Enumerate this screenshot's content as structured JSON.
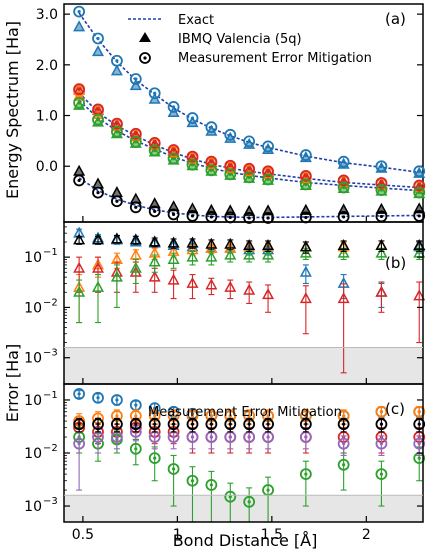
{
  "figure": {
    "xlabel": "Bond Distance [Å]",
    "ylabel_top": "Energy Spectrum [Ha]",
    "ylabel_bottom": "Error [Ha]",
    "colors": {
      "level0": "#1f77b4",
      "level1": "#ff7f0e",
      "level2": "#d62728",
      "level3": "#2ca02c",
      "level4": "#9467bd",
      "exact": "#1f3fa8",
      "black": "#000000",
      "threshold_band": "#e6e6e6"
    }
  },
  "chart_data": [
    {
      "type": "line",
      "panel_label": "(a)",
      "title": "",
      "xlabel": "",
      "ylabel": "Energy Spectrum [Ha]",
      "xlim": [
        0.4,
        2.3
      ],
      "ylim": [
        -1.1,
        3.2
      ],
      "x_ticks": [
        0.5,
        1,
        1.5,
        2
      ],
      "y_ticks": [
        "3.0",
        "2.0",
        "1.0",
        "0.0"
      ],
      "y_tick_values": [
        3.0,
        2.0,
        1.0,
        0.0
      ],
      "legend": {
        "position": "top-right",
        "entries": [
          "Exact",
          "IBMQ Valencia (5q)",
          "Measurement Error Mitigation"
        ]
      },
      "x": [
        0.48,
        0.58,
        0.68,
        0.78,
        0.88,
        0.98,
        1.08,
        1.18,
        1.28,
        1.38,
        1.48,
        1.68,
        1.88,
        2.08,
        2.28
      ],
      "exact": [
        {
          "name": "level0",
          "values": [
            3.02,
            2.5,
            2.06,
            1.7,
            1.42,
            1.15,
            0.93,
            0.75,
            0.6,
            0.47,
            0.37,
            0.2,
            0.07,
            -0.02,
            -0.12
          ]
        },
        {
          "name": "level1",
          "values": [
            1.45,
            1.06,
            0.8,
            0.6,
            0.42,
            0.27,
            0.14,
            0.04,
            -0.04,
            -0.1,
            -0.15,
            -0.24,
            -0.32,
            -0.37,
            -0.42
          ]
        },
        {
          "name": "level2",
          "values": [
            1.3,
            0.95,
            0.7,
            0.5,
            0.34,
            0.18,
            0.06,
            -0.04,
            -0.12,
            -0.18,
            -0.23,
            -0.32,
            -0.38,
            -0.43,
            -0.48
          ]
        },
        {
          "name": "level3",
          "values": [
            -0.23,
            -0.48,
            -0.65,
            -0.77,
            -0.86,
            -0.92,
            -0.96,
            -0.99,
            -1.0,
            -1.01,
            -1.01,
            -1.0,
            -0.99,
            -0.98,
            -0.97
          ]
        }
      ],
      "ibmq": [
        {
          "name": "level0",
          "values": [
            2.75,
            2.26,
            1.88,
            1.59,
            1.32,
            1.06,
            0.86,
            0.69,
            0.55,
            0.43,
            0.33,
            0.17,
            0.04,
            -0.04,
            -0.14
          ]
        },
        {
          "name": "level1",
          "values": [
            1.38,
            1.02,
            0.78,
            0.58,
            0.4,
            0.25,
            0.12,
            0.02,
            -0.06,
            -0.12,
            -0.17,
            -0.26,
            -0.34,
            -0.39,
            -0.44
          ]
        },
        {
          "name": "level2",
          "values": [
            1.5,
            1.1,
            0.82,
            0.62,
            0.44,
            0.3,
            0.17,
            0.07,
            -0.01,
            -0.07,
            -0.12,
            -0.21,
            -0.3,
            -0.35,
            -0.4
          ]
        },
        {
          "name": "level3",
          "values": [
            1.2,
            0.87,
            0.64,
            0.45,
            0.28,
            0.12,
            0.01,
            -0.1,
            -0.18,
            -0.24,
            -0.28,
            -0.38,
            -0.44,
            -0.49,
            -0.54
          ]
        },
        {
          "name": "black",
          "values": [
            -0.1,
            -0.35,
            -0.52,
            -0.65,
            -0.74,
            -0.8,
            -0.84,
            -0.87,
            -0.88,
            -0.89,
            -0.88,
            -0.87,
            -0.86,
            -0.85,
            -0.84
          ]
        }
      ],
      "mitigated": [
        {
          "name": "level0",
          "values": [
            3.05,
            2.52,
            2.08,
            1.72,
            1.44,
            1.17,
            0.95,
            0.77,
            0.62,
            0.49,
            0.39,
            0.22,
            0.09,
            0.0,
            -0.1
          ]
        },
        {
          "name": "level1",
          "values": [
            1.48,
            1.09,
            0.82,
            0.62,
            0.44,
            0.29,
            0.16,
            0.06,
            -0.02,
            -0.08,
            -0.13,
            -0.22,
            -0.3,
            -0.35,
            -0.4
          ]
        },
        {
          "name": "level2",
          "values": [
            1.52,
            1.12,
            0.84,
            0.64,
            0.46,
            0.32,
            0.19,
            0.09,
            0.01,
            -0.05,
            -0.1,
            -0.19,
            -0.28,
            -0.33,
            -0.38
          ]
        },
        {
          "name": "level3",
          "values": [
            1.25,
            0.92,
            0.68,
            0.48,
            0.31,
            0.15,
            0.03,
            -0.08,
            -0.16,
            -0.22,
            -0.26,
            -0.36,
            -0.42,
            -0.47,
            -0.52
          ]
        },
        {
          "name": "black",
          "values": [
            -0.28,
            -0.52,
            -0.69,
            -0.81,
            -0.89,
            -0.95,
            -0.98,
            -1.0,
            -1.01,
            -1.02,
            -1.02,
            -1.01,
            -1.0,
            -0.99,
            -0.98
          ]
        }
      ]
    },
    {
      "type": "scatter",
      "panel_label": "(b)",
      "title": "",
      "xlabel": "",
      "ylabel": "",
      "scale_y": "log",
      "xlim": [
        0.4,
        2.3
      ],
      "ylim": [
        0.0003,
        0.5
      ],
      "threshold": 0.0016,
      "y_ticks": [
        0.1,
        0.01,
        0.001
      ],
      "y_tick_labels": [
        {
          "base": "10",
          "exp": "−1"
        },
        {
          "base": "10",
          "exp": "−2"
        },
        {
          "base": "10",
          "exp": "−3"
        }
      ],
      "marker": "triangle",
      "x": [
        0.48,
        0.58,
        0.68,
        0.78,
        0.88,
        0.98,
        1.08,
        1.18,
        1.28,
        1.38,
        1.48,
        1.68,
        1.88,
        2.08,
        2.28
      ],
      "series": [
        {
          "name": "level0",
          "values": [
            0.3,
            0.24,
            0.22,
            0.2,
            0.19,
            0.17,
            0.16,
            0.15,
            0.15,
            0.14,
            0.14,
            0.05,
            0.03,
            0.02,
            0.16
          ],
          "err": [
            0.06,
            0.04,
            0.04,
            0.03,
            0.03,
            0.03,
            0.03,
            0.03,
            0.03,
            0.03,
            0.03,
            0.02,
            0.015,
            0.01,
            0.04
          ]
        },
        {
          "name": "level1",
          "values": [
            0.025,
            0.07,
            0.09,
            0.11,
            0.12,
            0.13,
            0.14,
            0.15,
            0.15,
            0.16,
            0.16,
            0.16,
            0.16,
            0.17,
            0.17
          ],
          "err": [
            0.02,
            0.03,
            0.03,
            0.03,
            0.03,
            0.03,
            0.03,
            0.03,
            0.03,
            0.03,
            0.03,
            0.04,
            0.04,
            0.04,
            0.04
          ]
        },
        {
          "name": "level2",
          "values": [
            0.06,
            0.06,
            0.05,
            0.05,
            0.04,
            0.035,
            0.03,
            0.028,
            0.025,
            0.022,
            0.018,
            0.015,
            0.015,
            0.02,
            0.017
          ],
          "err": [
            0.04,
            0.04,
            0.03,
            0.03,
            0.02,
            0.02,
            0.015,
            0.01,
            0.01,
            0.01,
            0.01,
            0.012,
            0.0145,
            0.012,
            0.015
          ]
        },
        {
          "name": "level3",
          "values": [
            0.02,
            0.025,
            0.04,
            0.06,
            0.08,
            0.09,
            0.1,
            0.1,
            0.11,
            0.11,
            0.11,
            0.12,
            0.12,
            0.12,
            0.12
          ],
          "err": [
            0.015,
            0.02,
            0.03,
            0.03,
            0.03,
            0.03,
            0.03,
            0.03,
            0.03,
            0.03,
            0.03,
            0.03,
            0.03,
            0.03,
            0.03
          ]
        },
        {
          "name": "black",
          "values": [
            0.22,
            0.22,
            0.23,
            0.22,
            0.2,
            0.19,
            0.19,
            0.18,
            0.18,
            0.17,
            0.17,
            0.16,
            0.17,
            0.17,
            0.17
          ],
          "err": [
            0.04,
            0.04,
            0.04,
            0.04,
            0.04,
            0.04,
            0.04,
            0.04,
            0.04,
            0.04,
            0.04,
            0.04,
            0.04,
            0.04,
            0.04
          ]
        }
      ]
    },
    {
      "type": "scatter",
      "panel_label": "(c)",
      "title": "",
      "annotation": "Measurement Error Mitigation",
      "xlabel": "Bond Distance [Å]",
      "ylabel": "",
      "scale_y": "log",
      "xlim": [
        0.4,
        2.3
      ],
      "ylim": [
        0.0005,
        0.2
      ],
      "threshold": 0.0016,
      "x_ticks": [
        0.5,
        1,
        1.5,
        2
      ],
      "y_ticks": [
        0.1,
        0.01,
        0.001
      ],
      "y_tick_labels": [
        {
          "base": "10",
          "exp": "−1"
        },
        {
          "base": "10",
          "exp": "−2"
        },
        {
          "base": "10",
          "exp": "−3"
        }
      ],
      "marker": "circle",
      "x": [
        0.48,
        0.58,
        0.68,
        0.78,
        0.88,
        0.98,
        1.08,
        1.18,
        1.28,
        1.38,
        1.48,
        1.68,
        1.88,
        2.08,
        2.28
      ],
      "series": [
        {
          "name": "level0",
          "values": [
            0.13,
            0.11,
            0.1,
            0.08,
            0.07,
            0.06,
            0.055,
            0.05,
            0.05,
            0.05,
            0.05,
            0.05,
            0.05,
            0.06,
            0.06
          ],
          "err": [
            0.02,
            0.02,
            0.02,
            0.015,
            0.015,
            0.012,
            0.012,
            0.01,
            0.01,
            0.01,
            0.01,
            0.01,
            0.01,
            0.012,
            0.012
          ]
        },
        {
          "name": "level1",
          "values": [
            0.04,
            0.045,
            0.05,
            0.05,
            0.05,
            0.05,
            0.05,
            0.05,
            0.05,
            0.05,
            0.05,
            0.05,
            0.05,
            0.06,
            0.06
          ],
          "err": [
            0.015,
            0.015,
            0.015,
            0.015,
            0.015,
            0.015,
            0.015,
            0.015,
            0.015,
            0.015,
            0.015,
            0.015,
            0.015,
            0.015,
            0.015
          ]
        },
        {
          "name": "level2",
          "values": [
            0.03,
            0.025,
            0.025,
            0.03,
            0.025,
            0.025,
            0.02,
            0.02,
            0.02,
            0.02,
            0.02,
            0.02,
            0.02,
            0.02,
            0.02
          ],
          "err": [
            0.012,
            0.01,
            0.01,
            0.012,
            0.01,
            0.01,
            0.01,
            0.01,
            0.01,
            0.01,
            0.01,
            0.01,
            0.01,
            0.01,
            0.01
          ]
        },
        {
          "name": "level3",
          "values": [
            0.02,
            0.015,
            0.018,
            0.012,
            0.008,
            0.005,
            0.003,
            0.0025,
            0.0015,
            0.0012,
            0.002,
            0.004,
            0.006,
            0.004,
            0.008
          ],
          "err": [
            0.01,
            0.008,
            0.008,
            0.006,
            0.005,
            0.004,
            0.0025,
            0.002,
            0.0012,
            0.001,
            0.0015,
            0.003,
            0.004,
            0.003,
            0.005
          ]
        },
        {
          "name": "level4",
          "values": [
            0.015,
            0.02,
            0.02,
            0.025,
            0.02,
            0.02,
            0.02,
            0.02,
            0.02,
            0.02,
            0.02,
            0.02,
            0.015,
            0.015,
            0.015
          ],
          "err": [
            0.013,
            0.01,
            0.008,
            0.008,
            0.008,
            0.008,
            0.008,
            0.008,
            0.008,
            0.008,
            0.008,
            0.008,
            0.006,
            0.006,
            0.006
          ]
        },
        {
          "name": "black",
          "values": [
            0.035,
            0.035,
            0.035,
            0.035,
            0.035,
            0.035,
            0.035,
            0.035,
            0.035,
            0.035,
            0.035,
            0.035,
            0.035,
            0.035,
            0.035
          ],
          "err": [
            0.01,
            0.01,
            0.01,
            0.01,
            0.01,
            0.01,
            0.01,
            0.01,
            0.01,
            0.01,
            0.01,
            0.01,
            0.01,
            0.01,
            0.01
          ]
        }
      ]
    }
  ]
}
